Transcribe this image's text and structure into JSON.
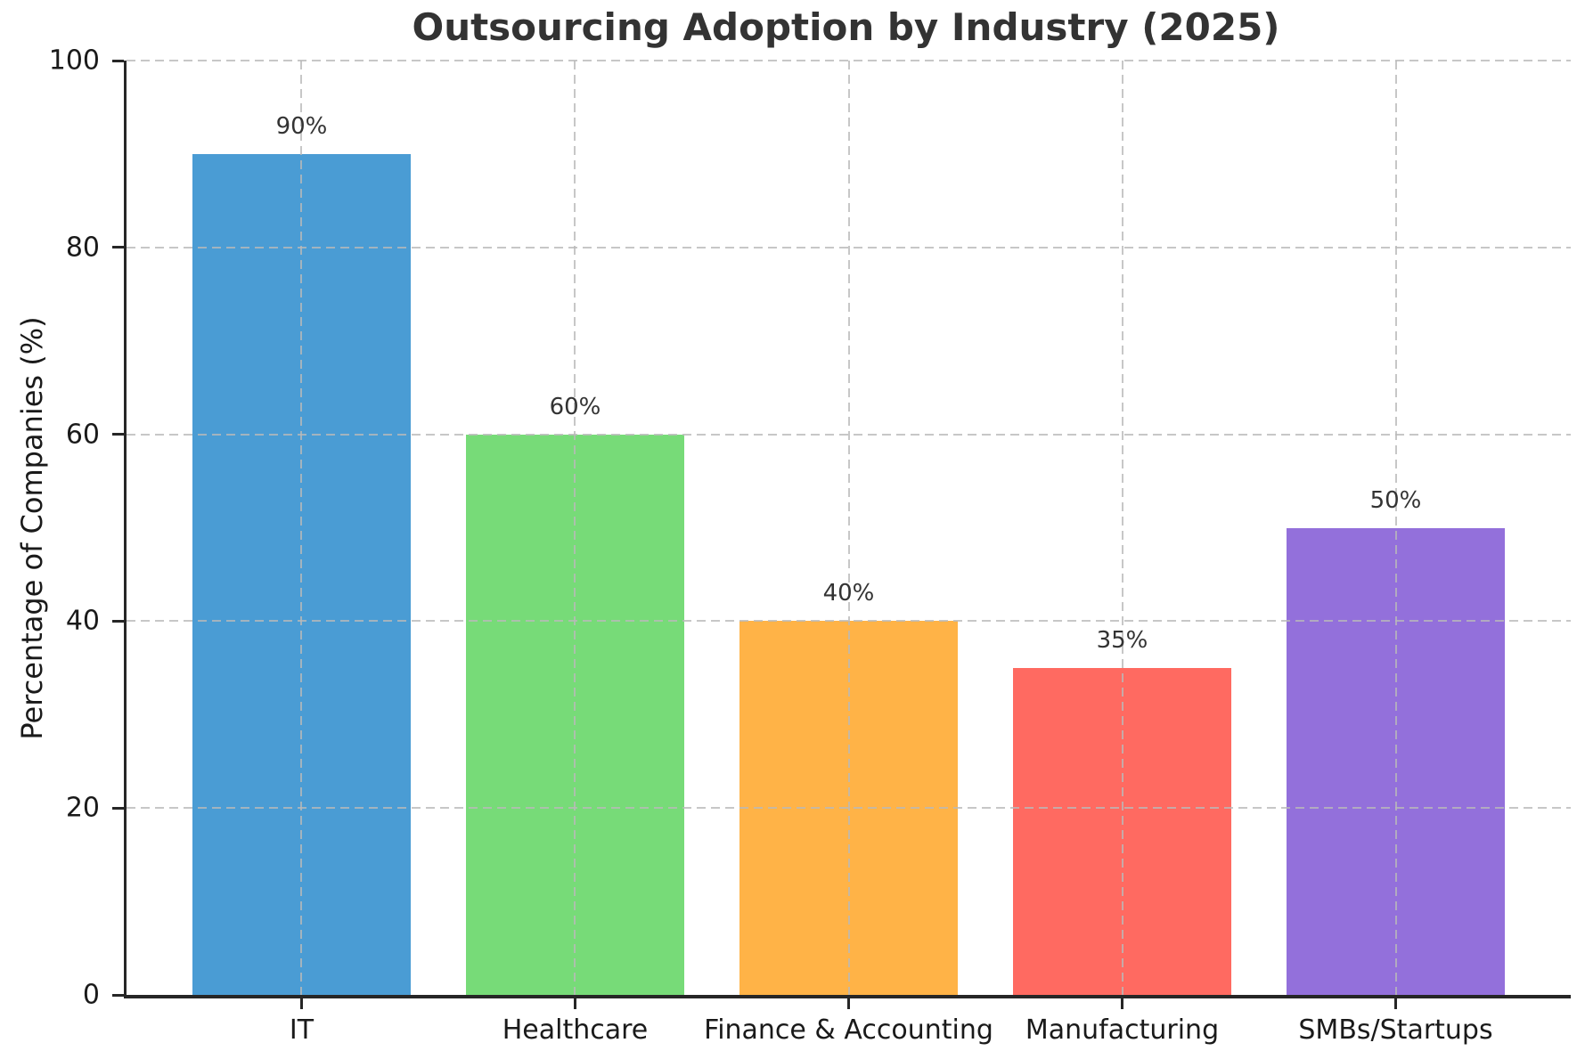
{
  "chart_data": {
    "type": "bar",
    "title": "Outsourcing Adoption by Industry (2025)",
    "xlabel": "",
    "ylabel": "Percentage of Companies (%)",
    "categories": [
      "IT",
      "Healthcare",
      "Finance & Accounting",
      "Manufacturing",
      "SMBs/Startups"
    ],
    "values": [
      90,
      60,
      40,
      35,
      50
    ],
    "bar_labels": [
      "90%",
      "60%",
      "40%",
      "35%",
      "50%"
    ],
    "bar_colors": [
      "#4A9CD4",
      "#77DB78",
      "#FFB347",
      "#FF6A61",
      "#9370DB"
    ],
    "ylim": [
      0,
      100
    ],
    "yticks": [
      0,
      20,
      40,
      60,
      80,
      100
    ],
    "ytick_labels": [
      "0",
      "20",
      "40",
      "60",
      "80",
      "100"
    ],
    "bar_width_fraction": 0.8,
    "axis_padding_fraction": 0.64,
    "grid": "dashed-both-axes-above-bars",
    "legend": "none"
  },
  "style_colors": {
    "background": "#ffffff",
    "spine": "#262626",
    "gridline": "#c9c9c9",
    "title_text": "#333333",
    "tick_text": "#1a1a1a",
    "bar_label_text": "#333333"
  }
}
